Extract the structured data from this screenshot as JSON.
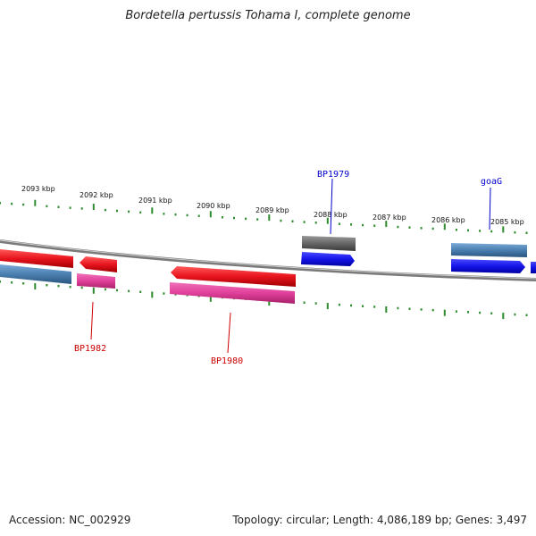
{
  "title": "Bordetella pertussis Tohama I, complete genome",
  "footer": {
    "accession": "Accession: NC_002929",
    "summary": "Topology: circular; Length: 4,086,189 bp; Genes: 3,497"
  },
  "ruler": {
    "labels": [
      "2093 kbp",
      "2092 kbp",
      "2091 kbp",
      "2090 kbp",
      "2089 kbp",
      "2088 kbp",
      "2087 kbp",
      "2086 kbp",
      "2085 kbp"
    ]
  },
  "gene_labels": {
    "bp1979": "BP1979",
    "goag": "goaG",
    "bp1982": "BP1982",
    "bp1980": "BP1980"
  },
  "colors": {
    "ruler_tick": "#2e8b2e",
    "backbone": "#7a7a7a",
    "forward_label": "#0000cc",
    "reverse_label": "#cc0000",
    "red_gene": "#e8141e",
    "pink_gene": "#e0409a",
    "steel_gene": "#4a7fb0",
    "blue_gene": "#1414e8",
    "gray_gene": "#666666"
  }
}
